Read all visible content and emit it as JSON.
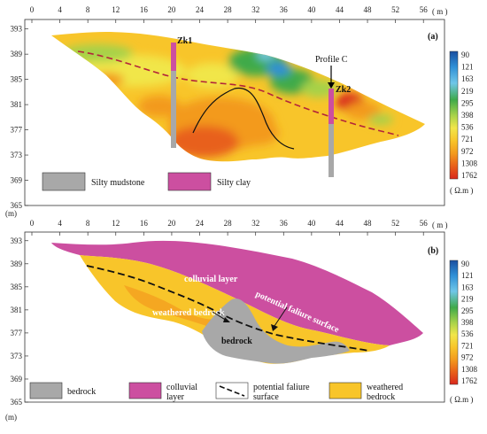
{
  "panels": [
    {
      "id": "a",
      "label": "(a)",
      "x_ticks": [
        "0",
        "4",
        "8",
        "12",
        "16",
        "20",
        "24",
        "28",
        "32",
        "36",
        "40",
        "44",
        "48",
        "52",
        "56"
      ],
      "y_ticks": [
        "393",
        "389",
        "385",
        "381",
        "377",
        "373",
        "369",
        "365"
      ],
      "x_unit": "( m )",
      "y_unit": "(m)",
      "boreholes": [
        {
          "name": "Zk1",
          "x_value": 20
        },
        {
          "name": "Zk2",
          "x_value": 44
        }
      ],
      "profile_label": "Profile C",
      "colorbar_ticks": [
        "90",
        "121",
        "163",
        "219",
        "295",
        "398",
        "536",
        "721",
        "972",
        "1308",
        "1762"
      ],
      "colorbar_unit": "( Ω.m )",
      "legend": [
        {
          "label": "Silty mudstone",
          "color": "#a8a8a8"
        },
        {
          "label": "Silty clay",
          "color": "#cc4fa0"
        }
      ]
    },
    {
      "id": "b",
      "label": "(b)",
      "x_ticks": [
        "0",
        "4",
        "8",
        "12",
        "16",
        "20",
        "24",
        "28",
        "32",
        "36",
        "40",
        "44",
        "48",
        "52",
        "56"
      ],
      "y_ticks": [
        "393",
        "389",
        "385",
        "381",
        "377",
        "373",
        "369",
        "365"
      ],
      "x_unit": "( m )",
      "y_unit": "(m)",
      "annotations": {
        "colluvial": "colluvial layer",
        "surface": "potential faliure surface",
        "weathered": "weathered bedrock",
        "bedrock": "bedrock"
      },
      "colorbar_ticks": [
        "90",
        "121",
        "163",
        "219",
        "295",
        "398",
        "536",
        "721",
        "972",
        "1308",
        "1762"
      ],
      "colorbar_unit": "( Ω.m )",
      "legend": [
        {
          "label": "bedrock",
          "color": "#a8a8a8"
        },
        {
          "label": "colluvial",
          "label2": "layer",
          "color": "#cc4fa0"
        },
        {
          "label": "potential faliure",
          "label2": "surface",
          "color": "#000000"
        },
        {
          "label": "weathered",
          "label2": "bedrock",
          "color": "#f7c52a"
        }
      ]
    }
  ],
  "colors": {
    "grey": "#a8a8a8",
    "magenta": "#cc4fa0",
    "yellow": "#f7c52a",
    "orange": "#f39a1e",
    "red": "#d9281c",
    "green": "#3faa4a"
  }
}
